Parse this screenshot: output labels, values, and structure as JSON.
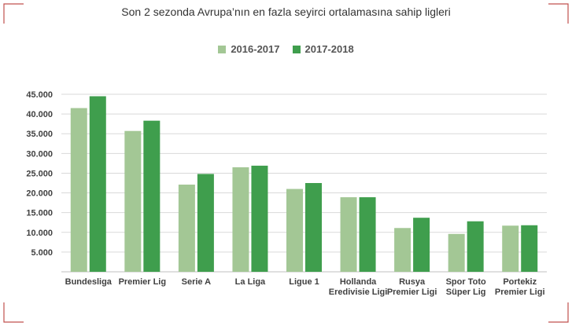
{
  "chart_data": {
    "type": "bar",
    "title": "Son 2 sezonda Avrupa’nın en fazla seyirci ortalamasına sahip ligleri",
    "categories": [
      [
        "Bundesliga"
      ],
      [
        "Premier Lig"
      ],
      [
        "Serie A"
      ],
      [
        "La Liga"
      ],
      [
        "Ligue 1"
      ],
      [
        "Hollanda",
        "Eredivisie Ligi"
      ],
      [
        "Rusya",
        "Premier Ligi"
      ],
      [
        "Spor Toto",
        "Süper Lig"
      ],
      [
        "Portekiz",
        "Premier Ligi"
      ]
    ],
    "series": [
      {
        "name": "2016-2017",
        "color": "#a3c795",
        "values": [
          41500,
          35700,
          22100,
          26500,
          21000,
          18900,
          11100,
          9600,
          11700
        ]
      },
      {
        "name": "2017-2018",
        "color": "#3f9e4d",
        "values": [
          44500,
          38300,
          24800,
          26900,
          22500,
          18900,
          13700,
          12800,
          11800
        ]
      }
    ],
    "xlabel": "",
    "ylabel": "",
    "ylim": [
      0,
      45000
    ],
    "yticks": [
      "",
      "5.000",
      "10.000",
      "15.000",
      "20.000",
      "25.000",
      "30.000",
      "35.000",
      "40.000",
      "45.000"
    ],
    "grid": true,
    "legend_position": "top"
  }
}
